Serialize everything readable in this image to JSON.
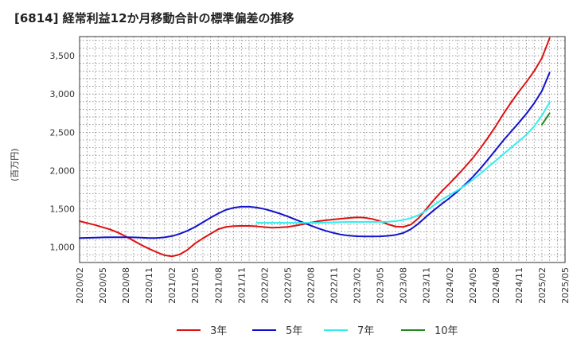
{
  "chart_data": {
    "type": "line",
    "title": "[6814]  経常利益12か月移動合計の標準偏差の推移",
    "ylabel": "(百万円)",
    "xlabel": "",
    "x_ticks": [
      "2020/02",
      "2020/05",
      "2020/08",
      "2020/11",
      "2021/02",
      "2021/05",
      "2021/08",
      "2021/11",
      "2022/02",
      "2022/05",
      "2022/08",
      "2022/11",
      "2023/02",
      "2023/05",
      "2023/08",
      "2023/11",
      "2024/02",
      "2024/05",
      "2024/08",
      "2024/11",
      "2025/02",
      "2025/05"
    ],
    "y_ticks": [
      1000,
      1500,
      2000,
      2500,
      3000,
      3500
    ],
    "ylim": [
      800,
      3750
    ],
    "grid": true,
    "legend_position": "bottom",
    "series": [
      {
        "name": "3年",
        "color": "#dd1111",
        "points": [
          [
            "2020/02",
            1340
          ],
          [
            "2020/03",
            1315
          ],
          [
            "2020/04",
            1290
          ],
          [
            "2020/05",
            1260
          ],
          [
            "2020/06",
            1230
          ],
          [
            "2020/07",
            1190
          ],
          [
            "2020/08",
            1140
          ],
          [
            "2020/09",
            1085
          ],
          [
            "2020/10",
            1030
          ],
          [
            "2020/11",
            980
          ],
          [
            "2020/12",
            935
          ],
          [
            "2021/01",
            895
          ],
          [
            "2021/02",
            880
          ],
          [
            "2021/03",
            905
          ],
          [
            "2021/04",
            965
          ],
          [
            "2021/05",
            1050
          ],
          [
            "2021/06",
            1115
          ],
          [
            "2021/07",
            1175
          ],
          [
            "2021/08",
            1235
          ],
          [
            "2021/09",
            1265
          ],
          [
            "2021/10",
            1275
          ],
          [
            "2021/11",
            1278
          ],
          [
            "2021/12",
            1278
          ],
          [
            "2022/01",
            1272
          ],
          [
            "2022/02",
            1262
          ],
          [
            "2022/03",
            1255
          ],
          [
            "2022/04",
            1258
          ],
          [
            "2022/05",
            1265
          ],
          [
            "2022/06",
            1280
          ],
          [
            "2022/07",
            1300
          ],
          [
            "2022/08",
            1320
          ],
          [
            "2022/09",
            1340
          ],
          [
            "2022/10",
            1352
          ],
          [
            "2022/11",
            1362
          ],
          [
            "2022/12",
            1372
          ],
          [
            "2023/01",
            1382
          ],
          [
            "2023/02",
            1390
          ],
          [
            "2023/03",
            1385
          ],
          [
            "2023/04",
            1368
          ],
          [
            "2023/05",
            1340
          ],
          [
            "2023/06",
            1300
          ],
          [
            "2023/07",
            1270
          ],
          [
            "2023/08",
            1265
          ],
          [
            "2023/09",
            1295
          ],
          [
            "2023/10",
            1380
          ],
          [
            "2023/11",
            1500
          ],
          [
            "2023/12",
            1620
          ],
          [
            "2024/01",
            1730
          ],
          [
            "2024/02",
            1830
          ],
          [
            "2024/03",
            1935
          ],
          [
            "2024/04",
            2045
          ],
          [
            "2024/05",
            2160
          ],
          [
            "2024/06",
            2290
          ],
          [
            "2024/07",
            2430
          ],
          [
            "2024/08",
            2580
          ],
          [
            "2024/09",
            2740
          ],
          [
            "2024/10",
            2890
          ],
          [
            "2024/11",
            3030
          ],
          [
            "2024/12",
            3160
          ],
          [
            "2025/01",
            3300
          ],
          [
            "2025/02",
            3470
          ],
          [
            "2025/03",
            3730
          ]
        ]
      },
      {
        "name": "5年",
        "color": "#1111cc",
        "points": [
          [
            "2020/02",
            1120
          ],
          [
            "2020/03",
            1122
          ],
          [
            "2020/04",
            1125
          ],
          [
            "2020/05",
            1128
          ],
          [
            "2020/06",
            1130
          ],
          [
            "2020/07",
            1130
          ],
          [
            "2020/08",
            1130
          ],
          [
            "2020/09",
            1128
          ],
          [
            "2020/10",
            1124
          ],
          [
            "2020/11",
            1120
          ],
          [
            "2020/12",
            1120
          ],
          [
            "2021/01",
            1128
          ],
          [
            "2021/02",
            1145
          ],
          [
            "2021/03",
            1175
          ],
          [
            "2021/04",
            1215
          ],
          [
            "2021/05",
            1265
          ],
          [
            "2021/06",
            1325
          ],
          [
            "2021/07",
            1385
          ],
          [
            "2021/08",
            1440
          ],
          [
            "2021/09",
            1488
          ],
          [
            "2021/10",
            1515
          ],
          [
            "2021/11",
            1528
          ],
          [
            "2021/12",
            1528
          ],
          [
            "2022/01",
            1518
          ],
          [
            "2022/02",
            1498
          ],
          [
            "2022/03",
            1470
          ],
          [
            "2022/04",
            1438
          ],
          [
            "2022/05",
            1402
          ],
          [
            "2022/06",
            1362
          ],
          [
            "2022/07",
            1322
          ],
          [
            "2022/08",
            1282
          ],
          [
            "2022/09",
            1245
          ],
          [
            "2022/10",
            1212
          ],
          [
            "2022/11",
            1185
          ],
          [
            "2022/12",
            1163
          ],
          [
            "2023/01",
            1150
          ],
          [
            "2023/02",
            1143
          ],
          [
            "2023/03",
            1140
          ],
          [
            "2023/04",
            1140
          ],
          [
            "2023/05",
            1142
          ],
          [
            "2023/06",
            1148
          ],
          [
            "2023/07",
            1160
          ],
          [
            "2023/08",
            1185
          ],
          [
            "2023/09",
            1235
          ],
          [
            "2023/10",
            1310
          ],
          [
            "2023/11",
            1400
          ],
          [
            "2023/12",
            1485
          ],
          [
            "2024/01",
            1565
          ],
          [
            "2024/02",
            1640
          ],
          [
            "2024/03",
            1725
          ],
          [
            "2024/04",
            1815
          ],
          [
            "2024/05",
            1915
          ],
          [
            "2024/06",
            2025
          ],
          [
            "2024/07",
            2145
          ],
          [
            "2024/08",
            2270
          ],
          [
            "2024/09",
            2395
          ],
          [
            "2024/10",
            2510
          ],
          [
            "2024/11",
            2625
          ],
          [
            "2024/12",
            2745
          ],
          [
            "2025/01",
            2880
          ],
          [
            "2025/02",
            3040
          ],
          [
            "2025/03",
            3280
          ]
        ]
      },
      {
        "name": "7年",
        "color": "#33eeee",
        "points": [
          [
            "2022/01",
            1318
          ],
          [
            "2022/02",
            1318
          ],
          [
            "2022/03",
            1318
          ],
          [
            "2022/04",
            1318
          ],
          [
            "2022/05",
            1318
          ],
          [
            "2022/06",
            1318
          ],
          [
            "2022/07",
            1318
          ],
          [
            "2022/08",
            1318
          ],
          [
            "2022/09",
            1320
          ],
          [
            "2022/10",
            1322
          ],
          [
            "2022/11",
            1325
          ],
          [
            "2022/12",
            1328
          ],
          [
            "2023/01",
            1330
          ],
          [
            "2023/02",
            1330
          ],
          [
            "2023/03",
            1330
          ],
          [
            "2023/04",
            1330
          ],
          [
            "2023/05",
            1330
          ],
          [
            "2023/06",
            1333
          ],
          [
            "2023/07",
            1340
          ],
          [
            "2023/08",
            1355
          ],
          [
            "2023/09",
            1380
          ],
          [
            "2023/10",
            1420
          ],
          [
            "2023/11",
            1480
          ],
          [
            "2023/12",
            1550
          ],
          [
            "2024/01",
            1620
          ],
          [
            "2024/02",
            1680
          ],
          [
            "2024/03",
            1740
          ],
          [
            "2024/04",
            1805
          ],
          [
            "2024/05",
            1880
          ],
          [
            "2024/06",
            1960
          ],
          [
            "2024/07",
            2045
          ],
          [
            "2024/08",
            2130
          ],
          [
            "2024/09",
            2215
          ],
          [
            "2024/10",
            2300
          ],
          [
            "2024/11",
            2385
          ],
          [
            "2024/12",
            2470
          ],
          [
            "2025/01",
            2580
          ],
          [
            "2025/02",
            2720
          ],
          [
            "2025/03",
            2890
          ]
        ]
      },
      {
        "name": "10年",
        "color": "#228822",
        "points": [
          [
            "2025/02",
            2600
          ],
          [
            "2025/03",
            2750
          ]
        ]
      }
    ]
  }
}
